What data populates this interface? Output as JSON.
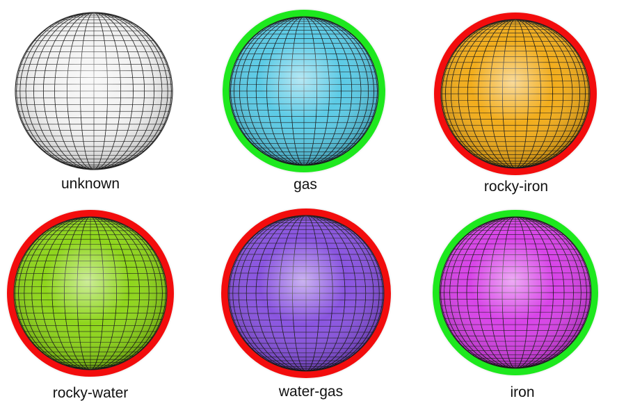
{
  "planets": [
    {
      "label": "unknown",
      "base": "#f2f2f2",
      "ring": null
    },
    {
      "label": "gas",
      "base": "#5ccbe6",
      "ring": "#1ee81e"
    },
    {
      "label": "rocky-iron",
      "base": "#f2ad1c",
      "ring": "#f20d0d"
    },
    {
      "label": "rocky-water",
      "base": "#8fd61c",
      "ring": "#f20d0d"
    },
    {
      "label": "water-gas",
      "base": "#8a55e0",
      "ring": "#f20d0d"
    },
    {
      "label": "iron",
      "base": "#d844e8",
      "ring": "#1ee81e"
    }
  ]
}
